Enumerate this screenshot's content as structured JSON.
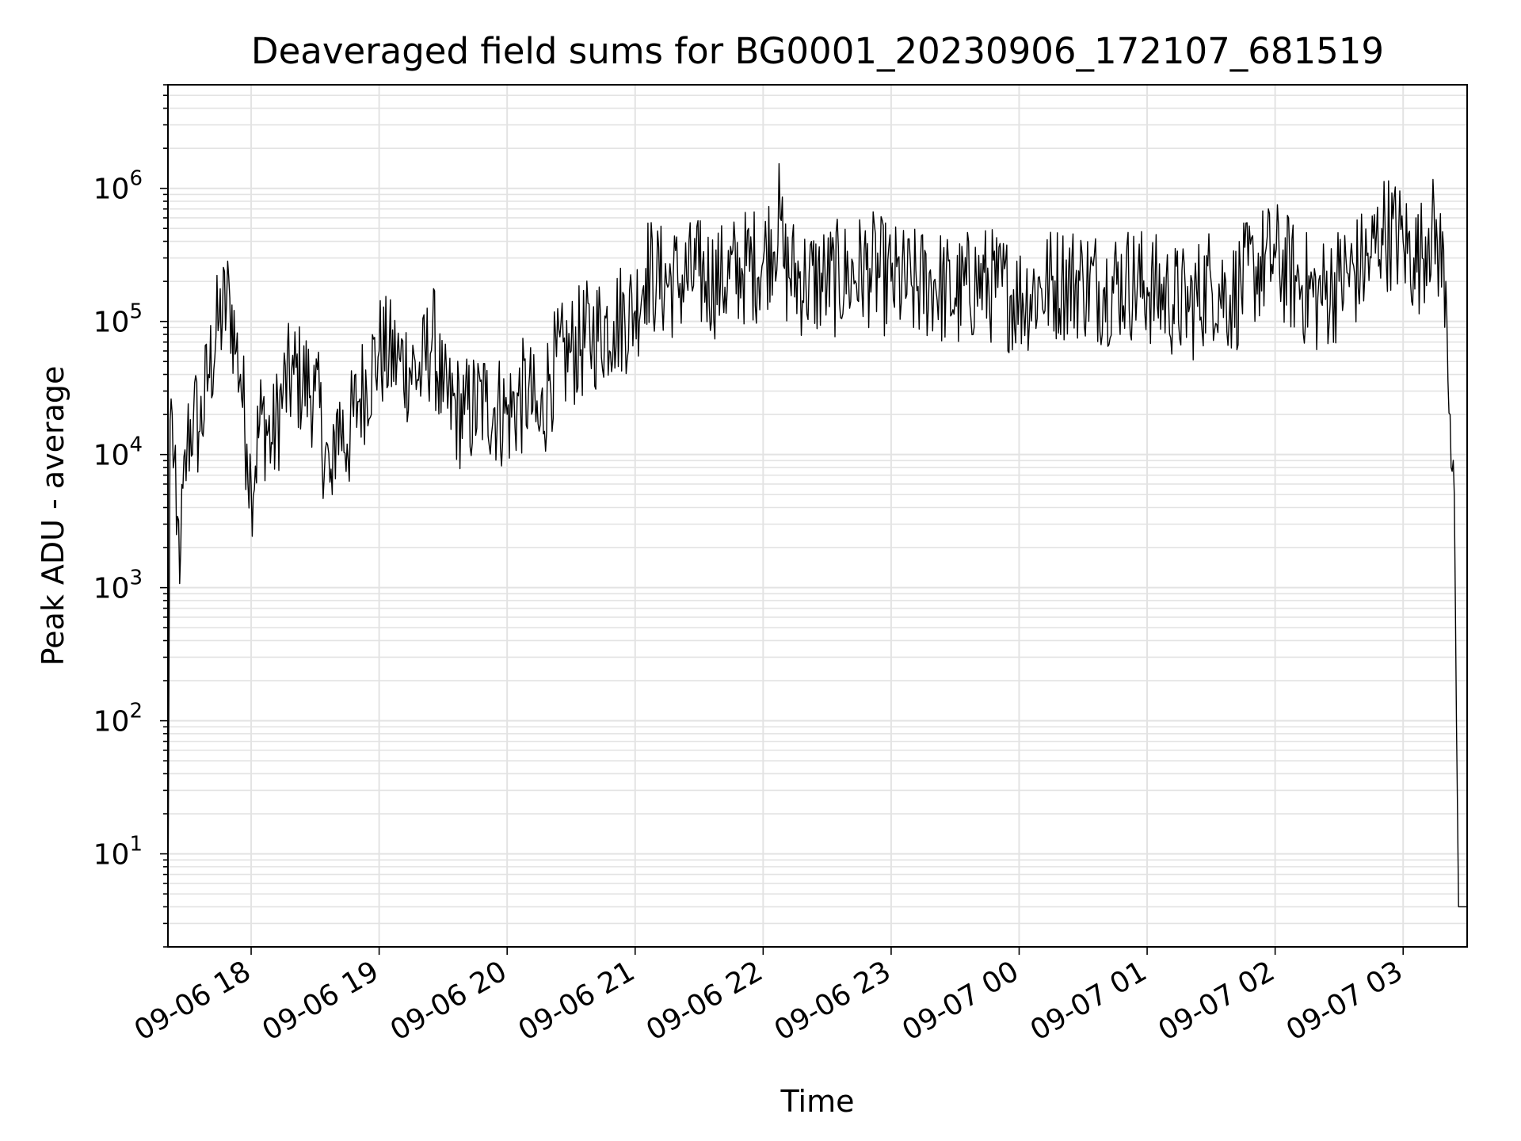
{
  "chart_data": {
    "type": "line",
    "title": "Deaveraged field sums for BG0001_20230906_172107_681519",
    "xlabel": "Time",
    "ylabel": "Peak ADU - average",
    "yscale": "log",
    "ylim": [
      2,
      6000000
    ],
    "xlim": [
      "2023-09-06 17:21",
      "2023-09-07 03:30"
    ],
    "grid": true,
    "line_color": "#000000",
    "x_ticks": [
      "09-06 18",
      "09-06 19",
      "09-06 20",
      "09-06 21",
      "09-06 22",
      "09-06 23",
      "09-07 00",
      "09-07 01",
      "09-07 02",
      "09-07 03"
    ],
    "y_ticks": [
      {
        "base": "10",
        "exp": "1"
      },
      {
        "base": "10",
        "exp": "2"
      },
      {
        "base": "10",
        "exp": "3"
      },
      {
        "base": "10",
        "exp": "4"
      },
      {
        "base": "10",
        "exp": "5"
      },
      {
        "base": "10",
        "exp": "6"
      }
    ],
    "series": [
      {
        "x": [
          "2023-09-06 17:21",
          "2023-09-06 17:22",
          "2023-09-06 17:23",
          "2023-09-06 17:25",
          "2023-09-06 17:27",
          "2023-09-06 17:30",
          "2023-09-06 17:33",
          "2023-09-06 17:36",
          "2023-09-06 17:40",
          "2023-09-06 17:45",
          "2023-09-06 17:50",
          "2023-09-06 17:53",
          "2023-09-06 17:55",
          "2023-09-06 17:58",
          "2023-09-06 18:00",
          "2023-09-06 18:05",
          "2023-09-06 18:10",
          "2023-09-06 18:15",
          "2023-09-06 18:20",
          "2023-09-06 18:30",
          "2023-09-06 18:38",
          "2023-09-06 18:40",
          "2023-09-06 18:45",
          "2023-09-06 18:50",
          "2023-09-06 19:00",
          "2023-09-06 19:10",
          "2023-09-06 19:20",
          "2023-09-06 19:25",
          "2023-09-06 19:30",
          "2023-09-06 19:40",
          "2023-09-06 19:50",
          "2023-09-06 20:00",
          "2023-09-06 20:10",
          "2023-09-06 20:15",
          "2023-09-06 20:20",
          "2023-09-06 20:30",
          "2023-09-06 20:40",
          "2023-09-06 20:50",
          "2023-09-06 21:00",
          "2023-09-06 21:05",
          "2023-09-06 21:10",
          "2023-09-06 21:20",
          "2023-09-06 21:30",
          "2023-09-06 21:40",
          "2023-09-06 21:50",
          "2023-09-06 22:00",
          "2023-09-06 22:08",
          "2023-09-06 22:10",
          "2023-09-06 22:20",
          "2023-09-06 22:30",
          "2023-09-06 22:40",
          "2023-09-06 22:50",
          "2023-09-06 23:00",
          "2023-09-06 23:10",
          "2023-09-06 23:20",
          "2023-09-06 23:30",
          "2023-09-06 23:40",
          "2023-09-06 23:50",
          "2023-09-07 00:00",
          "2023-09-07 00:10",
          "2023-09-07 00:20",
          "2023-09-07 00:30",
          "2023-09-07 00:40",
          "2023-09-07 00:50",
          "2023-09-07 01:00",
          "2023-09-07 01:10",
          "2023-09-07 01:20",
          "2023-09-07 01:30",
          "2023-09-07 01:40",
          "2023-09-07 01:50",
          "2023-09-07 02:00",
          "2023-09-07 02:10",
          "2023-09-07 02:20",
          "2023-09-07 02:30",
          "2023-09-07 02:40",
          "2023-09-07 02:45",
          "2023-09-07 02:50",
          "2023-09-07 03:00",
          "2023-09-07 03:05",
          "2023-09-07 03:08",
          "2023-09-07 03:12",
          "2023-09-07 03:16",
          "2023-09-07 03:20",
          "2023-09-07 03:22",
          "2023-09-07 03:24",
          "2023-09-07 03:25",
          "2023-09-07 03:26",
          "2023-09-07 03:28",
          "2023-09-07 03:30"
        ],
        "y": [
          3,
          18000,
          20000,
          2500,
          2000,
          12000,
          20000,
          15000,
          40000,
          100000,
          150000,
          60000,
          40000,
          12000,
          6000,
          20000,
          12000,
          30000,
          40000,
          30000,
          5000,
          20000,
          12000,
          25000,
          60000,
          50000,
          40000,
          80000,
          25000,
          20000,
          25000,
          20000,
          30000,
          15000,
          40000,
          60000,
          80000,
          100000,
          120000,
          250000,
          200000,
          200000,
          220000,
          200000,
          250000,
          280000,
          600000,
          250000,
          200000,
          200000,
          220000,
          250000,
          200000,
          180000,
          200000,
          150000,
          200000,
          180000,
          150000,
          180000,
          200000,
          200000,
          180000,
          200000,
          180000,
          150000,
          130000,
          200000,
          150000,
          250000,
          300000,
          200000,
          150000,
          200000,
          250000,
          300000,
          500000,
          400000,
          300000,
          300000,
          500000,
          400000,
          200000,
          20000,
          5000,
          100,
          4,
          4,
          4
        ]
      }
    ]
  }
}
